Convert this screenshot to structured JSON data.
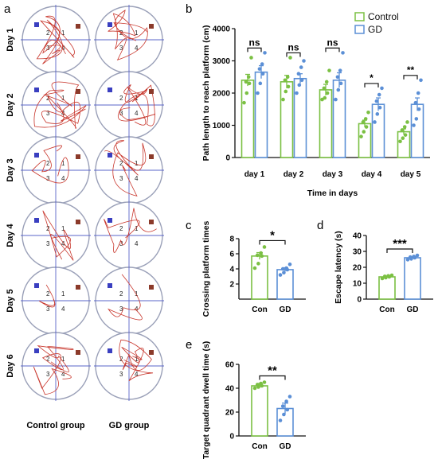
{
  "panel_letters": {
    "a": "a",
    "b": "b",
    "c": "c",
    "d": "d",
    "e": "e"
  },
  "maze": {
    "day_labels": [
      "Day 1",
      "Day 2",
      "Day 3",
      "Day 4",
      "Day 5",
      "Day 6"
    ],
    "group_labels": [
      "Control group",
      "GD group"
    ],
    "quadrants": [
      "1",
      "2",
      "3",
      "4"
    ],
    "colors": {
      "track": "#c8362c",
      "axes": "#5a64c9",
      "circle": "#9aa0b8",
      "platform": "#8b3a2a",
      "start": "#3a3fc0"
    }
  },
  "chart_data": [
    {
      "type": "bar",
      "panel": "b",
      "categories": [
        "day 1",
        "day 2",
        "day 3",
        "day 4",
        "day 5"
      ],
      "series": [
        {
          "name": "Control",
          "color": "#7bc043",
          "values": [
            2400,
            2350,
            2100,
            1050,
            800
          ],
          "points": [
            [
              1700,
              2000,
              2300,
              2350,
              2500,
              3100
            ],
            [
              1800,
              2050,
              2200,
              2400,
              2500,
              3100
            ],
            [
              1800,
              1850,
              2000,
              2150,
              2350,
              2700
            ],
            [
              650,
              800,
              950,
              1100,
              1200,
              1400
            ],
            [
              500,
              600,
              700,
              850,
              950,
              1100
            ]
          ]
        },
        {
          "name": "GD",
          "color": "#5b8fd6",
          "values": [
            2650,
            2450,
            2400,
            1650,
            1650
          ],
          "points": [
            [
              2000,
              2300,
              2600,
              2750,
              2900,
              3250
            ],
            [
              2000,
              2250,
              2400,
              2600,
              2800,
              3000
            ],
            [
              1800,
              2100,
              2300,
              2500,
              2700,
              3250
            ],
            [
              1100,
              1350,
              1550,
              1750,
              1950,
              2150
            ],
            [
              1000,
              1200,
              1500,
              1700,
              2000,
              2400
            ]
          ]
        }
      ],
      "errors": {
        "Control": [
          180,
          200,
          170,
          110,
          90
        ],
        "GD": [
          200,
          150,
          230,
          200,
          200
        ]
      },
      "significance": [
        "ns",
        "ns",
        "ns",
        "*",
        "**"
      ],
      "ylabel": "Path length to reach platform (cm)",
      "xlabel": "Time in days",
      "ylim": [
        0,
        4000
      ],
      "yticks": [
        "0",
        "1000",
        "2000",
        "3000",
        "4000"
      ],
      "legend": "top-right"
    },
    {
      "type": "bar",
      "panel": "c",
      "categories": [
        "Con",
        "GD"
      ],
      "values": [
        5.7,
        3.9
      ],
      "errors": [
        0.45,
        0.25
      ],
      "points": [
        [
          4.1,
          4.7,
          5.7,
          5.8,
          6.1,
          6.9
        ],
        [
          3.2,
          3.5,
          3.9,
          4.0,
          4.1,
          4.6
        ]
      ],
      "colors": [
        "#7bc043",
        "#5b8fd6"
      ],
      "significance": "*",
      "ylabel": "Crossing platform times",
      "ylim": [
        0,
        8
      ],
      "yticks": [
        "2",
        "4",
        "6",
        "8"
      ]
    },
    {
      "type": "bar",
      "panel": "d",
      "categories": [
        "Con",
        "GD"
      ],
      "values": [
        14,
        26
      ],
      "errors": [
        0.5,
        0.6
      ],
      "points": [
        [
          13.0,
          13.5,
          14.0,
          14.3,
          14.6,
          15.0
        ],
        [
          24.8,
          25.3,
          26.0,
          26.4,
          26.8,
          27.5
        ]
      ],
      "colors": [
        "#7bc043",
        "#5b8fd6"
      ],
      "significance": "***",
      "ylabel": "Escape latency (s)",
      "ylim": [
        0,
        40
      ],
      "yticks": [
        "0",
        "10",
        "20",
        "30",
        "40"
      ]
    },
    {
      "type": "bar",
      "panel": "e",
      "categories": [
        "Con",
        "GD"
      ],
      "values": [
        42,
        23
      ],
      "errors": [
        2.0,
        4.5
      ],
      "points": [
        [
          40,
          41,
          42,
          43,
          44,
          45
        ],
        [
          13,
          18,
          22,
          25,
          29,
          33
        ]
      ],
      "colors": [
        "#7bc043",
        "#5b8fd6"
      ],
      "significance": "**",
      "ylabel": "Target quadrant dwell time (s)",
      "ylim": [
        0,
        60
      ],
      "yticks": [
        "0",
        "20",
        "40",
        "60"
      ]
    }
  ]
}
